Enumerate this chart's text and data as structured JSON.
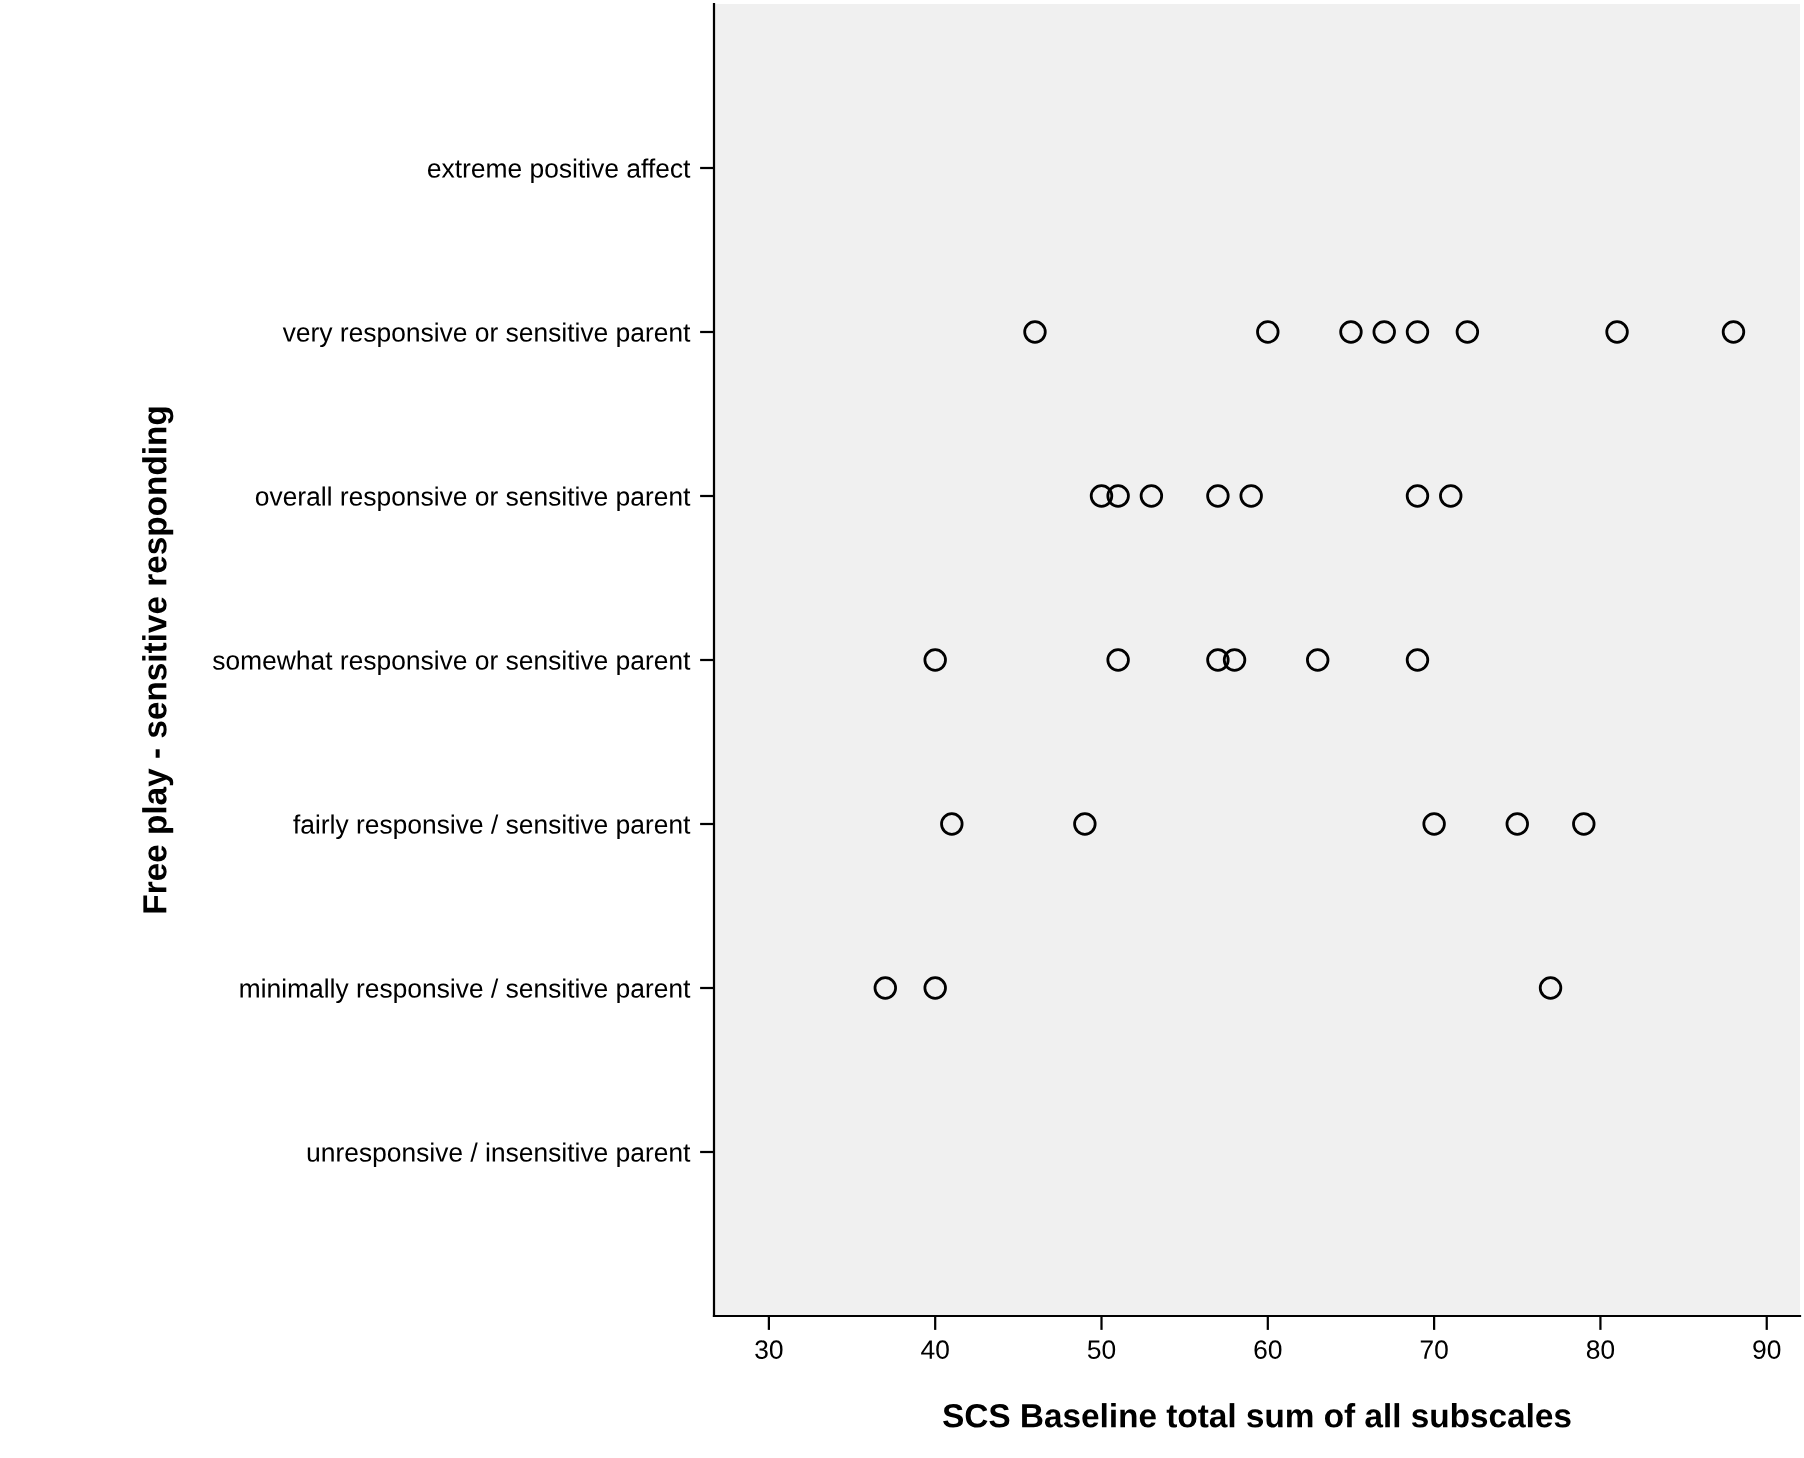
{
  "chart_data": {
    "type": "scatter",
    "orientation": "horizontal",
    "xlabel": "SCS Baseline total sum of all subscales",
    "ylabel": "Free play - sensitive responding",
    "categories": [
      "extreme positive affect",
      "very responsive or sensitive parent",
      "overall responsive or sensitive parent",
      "somewhat responsive or sensitive parent",
      "fairly responsive / sensitive parent",
      "minimally responsive / sensitive parent",
      "unresponsive / insensitive parent"
    ],
    "series": [
      {
        "color": "#000000",
        "values": [
          46,
          60,
          65,
          67,
          69,
          72,
          81,
          88,
          50,
          51,
          null,
          53,
          57,
          59,
          69,
          71,
          40,
          51,
          57,
          58,
          null,
          63,
          69,
          41,
          49,
          70,
          75,
          79,
          37,
          40,
          77
        ],
        "x": [
          "very responsive or sensitive parent",
          "very responsive or sensitive parent",
          "very responsive or sensitive parent",
          "very responsive or sensitive parent",
          "very responsive or sensitive parent",
          "very responsive or sensitive parent",
          "very responsive or sensitive parent",
          "very responsive or sensitive parent",
          "overall responsive or sensitive parent",
          "overall responsive or sensitive parent",
          "overall responsive or sensitive parent",
          "overall responsive or sensitive parent",
          "overall responsive or sensitive parent",
          "overall responsive or sensitive parent",
          "overall responsive or sensitive parent",
          "overall responsive or sensitive parent",
          "somewhat responsive or sensitive parent",
          "somewhat responsive or sensitive parent",
          "somewhat responsive or sensitive parent",
          "somewhat responsive or sensitive parent",
          "somewhat responsive or sensitive parent",
          "somewhat responsive or sensitive parent",
          "somewhat responsive or sensitive parent",
          "fairly responsive / sensitive parent",
          "fairly responsive / sensitive parent",
          "fairly responsive / sensitive parent",
          "fairly responsive / sensitive parent",
          "fairly responsive / sensitive parent",
          "minimally responsive / sensitive parent",
          "minimally responsive / sensitive parent",
          "minimally responsive / sensitive parent"
        ]
      }
    ],
    "xlim": [
      26.7,
      92
    ],
    "xticks": [
      30,
      40,
      50,
      60,
      70,
      80,
      90
    ],
    "marker": "circle"
  }
}
